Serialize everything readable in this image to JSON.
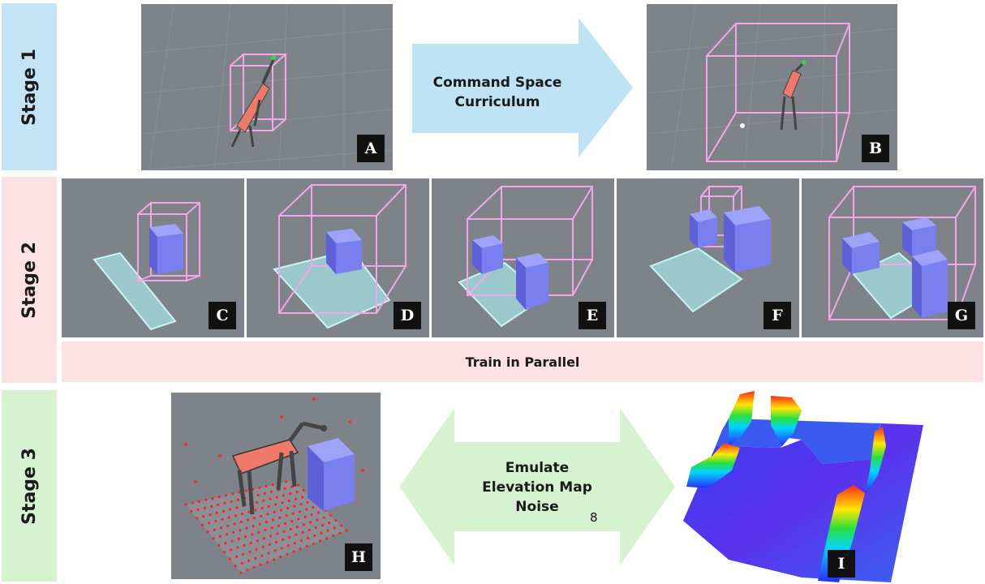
{
  "stages": [
    {
      "label": "Stage 1",
      "color": "#c4e3f5"
    },
    {
      "label": "Stage 2",
      "color": "#fde2e5"
    },
    {
      "label": "Stage 3",
      "color": "#d5f3cf"
    }
  ],
  "stage1": {
    "arrow_text": [
      "Command Space",
      "Curriculum"
    ],
    "arrow_color": "#bde3f5",
    "panels": [
      "A",
      "B"
    ]
  },
  "stage2": {
    "panels": [
      "C",
      "D",
      "E",
      "F",
      "G"
    ],
    "band_text": "Train in Parallel",
    "band_color": "#fde2e5"
  },
  "stage3": {
    "arrow_text": [
      "Emulate",
      "Elevation Map",
      "Noise"
    ],
    "arrow_color": "#d5f3cf",
    "panels": [
      "H",
      "I"
    ],
    "page_number": "8"
  },
  "colors": {
    "command_box": "#f4a6e8",
    "obstacle": "#7a7ff0",
    "target_zone": "#a8e6e6",
    "robot": "#f07a6a",
    "floor": "#7b7f86"
  }
}
